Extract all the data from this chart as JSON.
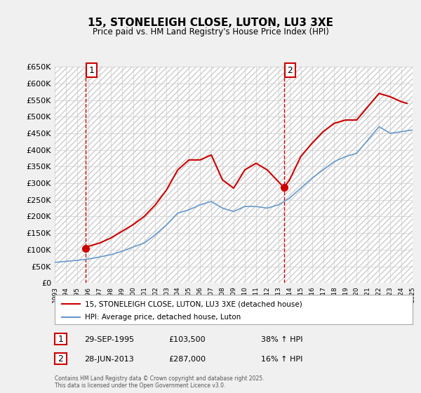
{
  "title": "15, STONELEIGH CLOSE, LUTON, LU3 3XE",
  "subtitle": "Price paid vs. HM Land Registry's House Price Index (HPI)",
  "ylim": [
    0,
    650000
  ],
  "yticks": [
    0,
    50000,
    100000,
    150000,
    200000,
    250000,
    300000,
    350000,
    400000,
    450000,
    500000,
    550000,
    600000,
    650000
  ],
  "background_color": "#f0f0f0",
  "plot_bg_color": "#ffffff",
  "legend_label_red": "15, STONELEIGH CLOSE, LUTON, LU3 3XE (detached house)",
  "legend_label_blue": "HPI: Average price, detached house, Luton",
  "annotation1_label": "1",
  "annotation1_date": "29-SEP-1995",
  "annotation1_price": "£103,500",
  "annotation1_hpi": "38% ↑ HPI",
  "annotation2_label": "2",
  "annotation2_date": "28-JUN-2013",
  "annotation2_price": "£287,000",
  "annotation2_hpi": "16% ↑ HPI",
  "footer": "Contains HM Land Registry data © Crown copyright and database right 2025.\nThis data is licensed under the Open Government Licence v3.0.",
  "hpi_line": {
    "years": [
      1993,
      1994,
      1995,
      1996,
      1997,
      1998,
      1999,
      2000,
      2001,
      2002,
      2003,
      2004,
      2005,
      2006,
      2007,
      2008,
      2009,
      2010,
      2011,
      2012,
      2013,
      2014,
      2015,
      2016,
      2017,
      2018,
      2019,
      2020,
      2021,
      2022,
      2023,
      2024,
      2025
    ],
    "values": [
      62000,
      65000,
      68000,
      72000,
      78000,
      85000,
      95000,
      108000,
      120000,
      145000,
      175000,
      210000,
      220000,
      235000,
      245000,
      225000,
      215000,
      230000,
      230000,
      225000,
      235000,
      255000,
      285000,
      315000,
      340000,
      365000,
      380000,
      390000,
      430000,
      470000,
      450000,
      455000,
      460000
    ]
  },
  "price_line": {
    "x": [
      1995.75,
      1996,
      1997,
      1998,
      1999,
      2000,
      2001,
      2002,
      2003,
      2004,
      2005,
      2006,
      2007,
      2008,
      2009,
      2010,
      2011,
      2012,
      2013.5,
      2014,
      2015,
      2016,
      2017,
      2018,
      2019,
      2020,
      2021,
      2022,
      2023,
      2024,
      2024.5
    ],
    "y": [
      103500,
      110000,
      120000,
      135000,
      155000,
      175000,
      200000,
      235000,
      280000,
      340000,
      370000,
      370000,
      385000,
      310000,
      285000,
      340000,
      360000,
      340000,
      287000,
      310000,
      380000,
      420000,
      455000,
      480000,
      490000,
      490000,
      530000,
      570000,
      560000,
      545000,
      540000
    ]
  },
  "sale1_x": 1995.75,
  "sale1_y": 103500,
  "sale2_x": 2013.5,
  "sale2_y": 287000,
  "vline1_x": 1995.75,
  "vline2_x": 2013.5,
  "xmin": 1993,
  "xmax": 2025,
  "red_color": "#cc0000",
  "blue_color": "#6699cc"
}
